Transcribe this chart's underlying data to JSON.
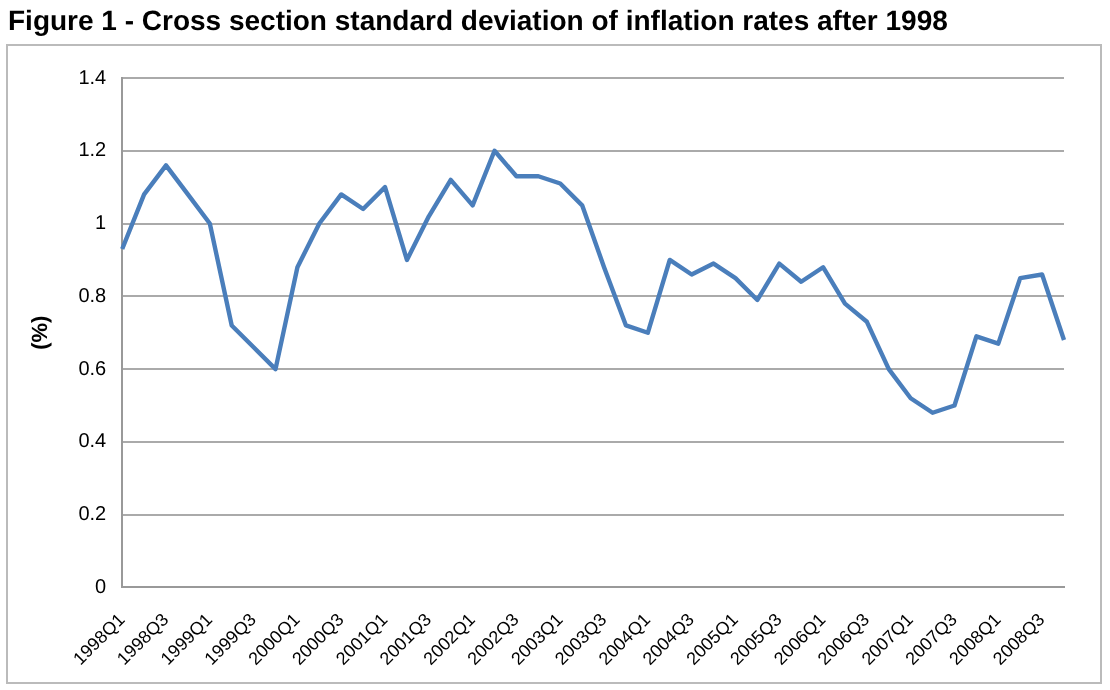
{
  "chart_data": {
    "type": "line",
    "title": "Figure 1 - Cross section standard deviation of inflation rates after 1998",
    "ylabel": "(%)",
    "categories": [
      "1998Q1",
      null,
      "1998Q3",
      null,
      "1999Q1",
      null,
      "1999Q3",
      null,
      "2000Q1",
      null,
      "2000Q3",
      null,
      "2001Q1",
      null,
      "2001Q3",
      null,
      "2002Q1",
      null,
      "2002Q3",
      null,
      "2003Q1",
      null,
      "2003Q3",
      null,
      "2004Q1",
      null,
      "2004Q3",
      null,
      "2005Q1",
      null,
      "2005Q3",
      null,
      "2006Q1",
      null,
      "2006Q3",
      null,
      "2007Q1",
      null,
      "2007Q3",
      null,
      "2008Q1",
      null,
      "2008Q3",
      null
    ],
    "series": [
      {
        "color": "#4a7ebb",
        "values": [
          0.93,
          1.08,
          1.16,
          1.08,
          1.0,
          0.72,
          0.66,
          0.6,
          0.88,
          1.0,
          1.08,
          1.04,
          1.1,
          0.9,
          1.02,
          1.12,
          1.05,
          1.2,
          1.13,
          1.13,
          1.11,
          1.05,
          0.88,
          0.72,
          0.7,
          0.9,
          0.86,
          0.89,
          0.85,
          0.79,
          0.89,
          0.84,
          0.88,
          0.78,
          0.73,
          0.6,
          0.52,
          0.48,
          0.5,
          0.69,
          0.67,
          0.85,
          0.86,
          0.68
        ]
      }
    ],
    "ylim": [
      0,
      1.4
    ],
    "yticks": [
      0,
      0.2,
      0.4,
      0.6,
      0.8,
      1,
      1.2,
      1.4
    ],
    "grid": "y",
    "legend": false,
    "marker": "none",
    "line_style": "solid"
  }
}
